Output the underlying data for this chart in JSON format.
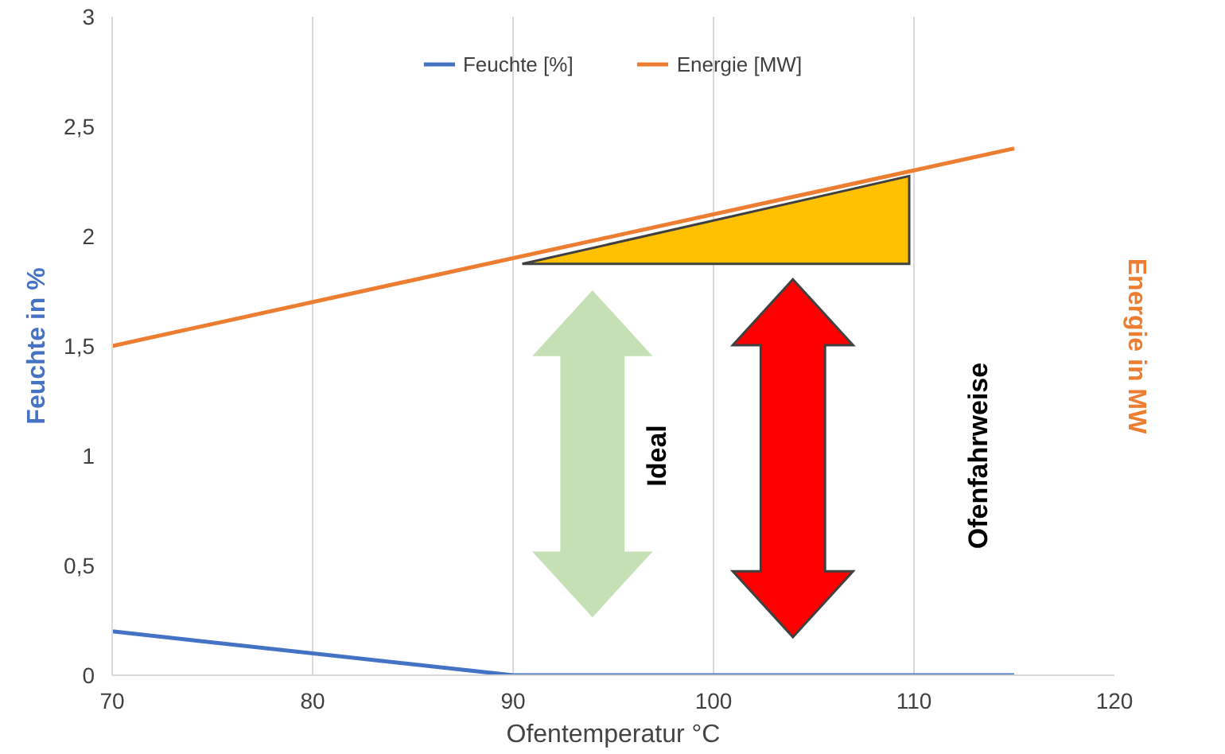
{
  "chart_data": {
    "type": "line",
    "xlabel": "Ofentemperatur °C",
    "ylabel": "Feuchte in %",
    "y2label": "Energie in MW",
    "xlim": [
      70,
      120
    ],
    "xticks": [
      70,
      80,
      90,
      100,
      110,
      120
    ],
    "ylim": [
      0,
      3
    ],
    "yticks": [
      0,
      {
        "value": 0.5,
        "label": "0,5"
      },
      1,
      {
        "value": 1.5,
        "label": "1,5"
      },
      2,
      {
        "value": 2.5,
        "label": "2,5"
      },
      3
    ],
    "grid": "x",
    "legend": "top",
    "series": [
      {
        "name": "Feuchte [%]",
        "color": "#4472c4",
        "x": [
          70,
          90,
          115
        ],
        "values": [
          0.2,
          0,
          0
        ]
      },
      {
        "name": "Energie [MW]",
        "color": "#ed7d31",
        "x": [
          70,
          115
        ],
        "values": [
          1.5,
          2.4
        ]
      }
    ],
    "annotations": [
      "Ideal",
      "Ofenfahrweise"
    ]
  }
}
